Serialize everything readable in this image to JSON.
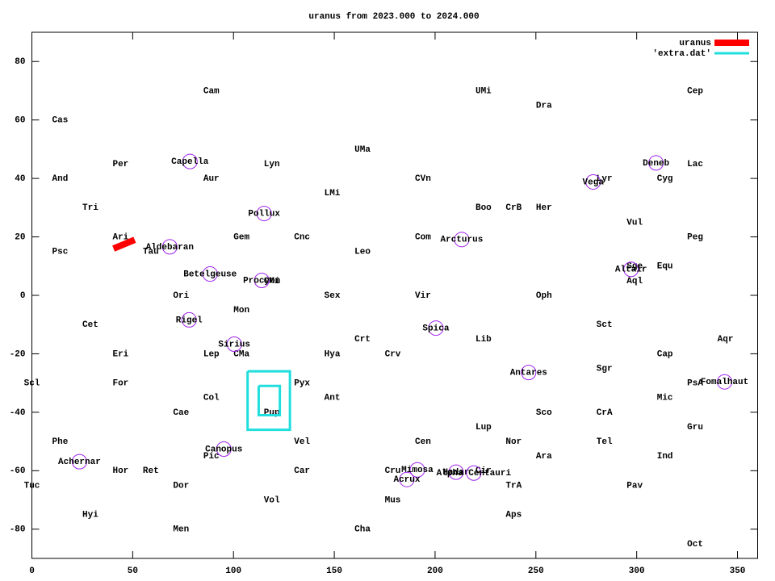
{
  "chart_data": {
    "type": "scatter",
    "title": "uranus from 2023.000 to 2024.000",
    "xlim": [
      0,
      360
    ],
    "ylim": [
      -90,
      90
    ],
    "xticks": [
      0,
      50,
      100,
      150,
      200,
      250,
      300,
      350
    ],
    "yticks": [
      -80,
      -60,
      -40,
      -20,
      0,
      20,
      40,
      60,
      80
    ],
    "legend": "top right",
    "series": [
      {
        "name": "uranus",
        "color": "#ff0000",
        "x": [
          40.5,
          51
        ],
        "values": [
          16,
          19
        ]
      },
      {
        "name": "'extra.dat'",
        "color": "#20dede",
        "x": [
          107,
          128,
          128,
          107,
          107,
          null,
          112.5,
          123,
          123,
          112.5,
          112.5
        ],
        "values": [
          -26,
          -26,
          -46,
          -46,
          -26,
          null,
          -31,
          -31,
          -41,
          -41,
          -31
        ]
      }
    ],
    "constellations": {
      "names": [
        "Cam",
        "Cas",
        "UMi",
        "Dra",
        "Cep",
        "UMa",
        "Per",
        "Lyn",
        "Lac",
        "And",
        "Aur",
        "CVn",
        "Cyg",
        "LMi",
        "Lyr",
        "Tri",
        "Boo",
        "CrB",
        "Her",
        "Vul",
        "Ari",
        "Gem",
        "Cnc",
        "Com",
        "Peg",
        "Psc",
        "Tau",
        "Leo",
        "Sge",
        "Equ",
        "Aql",
        "CMi",
        "Ori",
        "Sex",
        "Vir",
        "Oph",
        "Mon",
        "Cet",
        "Sct",
        "Crt",
        "Lib",
        "Aqr",
        "Eri",
        "Lep",
        "CMa",
        "Hya",
        "Crv",
        "Cap",
        "Sgr",
        "Scl",
        "For",
        "Pyx",
        "PsA",
        "Col",
        "Ant",
        "Mic",
        "Cae",
        "Pup",
        "Sco",
        "CrA",
        "Lup",
        "Gru",
        "Phe",
        "Vel",
        "Cen",
        "Nor",
        "Tel",
        "Pic",
        "Ara",
        "Ind",
        "Hor",
        "Ret",
        "Car",
        "Cru",
        "Cir",
        "Tuc",
        "Dor",
        "TrA",
        "Pav",
        "Vol",
        "Mus",
        "Hyi",
        "Aps",
        "Men",
        "Cha",
        "Oct"
      ],
      "x": [
        89,
        14,
        224,
        254,
        329,
        164,
        44,
        119,
        329,
        14,
        89,
        194,
        314,
        149,
        284,
        29,
        224,
        239,
        254,
        299,
        44,
        104,
        134,
        194,
        329,
        14,
        59,
        164,
        299,
        314,
        299,
        119,
        74,
        149,
        194,
        254,
        104,
        29,
        284,
        164,
        224,
        344,
        44,
        89,
        104,
        149,
        179,
        314,
        284,
        0,
        44,
        134,
        329,
        89,
        149,
        314,
        74,
        119,
        254,
        284,
        224,
        329,
        14,
        134,
        194,
        239,
        284,
        89,
        254,
        314,
        44,
        59,
        134,
        179,
        224,
        0,
        74,
        239,
        299,
        119,
        179,
        29,
        239,
        74,
        164,
        329
      ],
      "y": [
        70,
        60,
        70,
        65,
        70,
        50,
        45,
        45,
        45,
        40,
        40,
        40,
        40,
        35,
        40,
        30,
        30,
        30,
        30,
        25,
        20,
        20,
        20,
        20,
        20,
        15,
        15,
        15,
        10,
        10,
        5,
        5,
        0,
        0,
        0,
        0,
        -5,
        -10,
        -10,
        -15,
        -15,
        -15,
        -20,
        -20,
        -20,
        -20,
        -20,
        -20,
        -25,
        -30,
        -30,
        -30,
        -30,
        -35,
        -35,
        -35,
        -40,
        -40,
        -40,
        -40,
        -45,
        -45,
        -50,
        -50,
        -50,
        -50,
        -50,
        -55,
        -55,
        -55,
        -60,
        -60,
        -60,
        -60,
        -60,
        -65,
        -65,
        -65,
        -65,
        -70,
        -70,
        -75,
        -75,
        -80,
        -80,
        -85
      ]
    },
    "stars": {
      "color": "#a020f0",
      "names": [
        "Capella",
        "Deneb",
        "Vega",
        "Pollux",
        "Arcturus",
        "Aldebaran",
        "Betelgeuse",
        "Procyon",
        "Altair",
        "Rigel",
        "Spica",
        "Sirius",
        "Antares",
        "Fomalhaut",
        "Canopus",
        "Achernar",
        "Mimosa",
        "Hadar",
        "Alpha Centauri",
        "Acrux"
      ],
      "x": [
        78.4,
        309.6,
        278.4,
        115.2,
        213.2,
        68.4,
        88.4,
        114,
        297.2,
        78,
        200.4,
        100.4,
        246.4,
        343.6,
        95.2,
        23.6,
        191.2,
        210.4,
        219.2,
        186
      ],
      "y": [
        45.8,
        45.3,
        38.8,
        28,
        19.1,
        16.6,
        7.3,
        5.1,
        8.9,
        -8.4,
        -11.2,
        -16.7,
        -26.4,
        -29.6,
        -52.6,
        -56.9,
        -59.7,
        -60.5,
        -60.8,
        -63
      ]
    }
  }
}
